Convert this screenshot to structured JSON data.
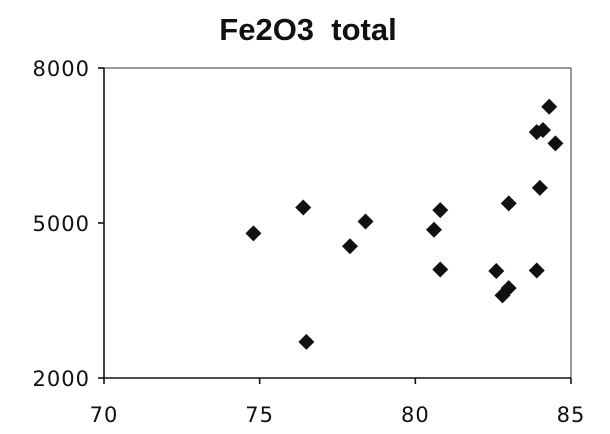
{
  "chart_data": {
    "type": "scatter",
    "title": "Fe2O3  total",
    "xlabel": "",
    "ylabel": "",
    "xlim": [
      70,
      85
    ],
    "ylim": [
      2000,
      8000
    ],
    "x_ticks": [
      70,
      75,
      80,
      85
    ],
    "y_ticks": [
      2000,
      5000,
      8000
    ],
    "x_tick_labels": [
      "70",
      "75",
      "80",
      "85"
    ],
    "y_tick_labels": [
      "2000",
      "5000",
      "8000"
    ],
    "grid": false,
    "legend": "none",
    "marker": "diamond",
    "marker_color": "#111111",
    "series": [
      {
        "points": [
          {
            "x": 74.8,
            "y": 4800
          },
          {
            "x": 76.4,
            "y": 5300
          },
          {
            "x": 76.5,
            "y": 2700
          },
          {
            "x": 77.9,
            "y": 4550
          },
          {
            "x": 78.4,
            "y": 5030
          },
          {
            "x": 80.6,
            "y": 4870
          },
          {
            "x": 80.8,
            "y": 5250
          },
          {
            "x": 80.8,
            "y": 4100
          },
          {
            "x": 82.6,
            "y": 4070
          },
          {
            "x": 82.8,
            "y": 3600
          },
          {
            "x": 83.0,
            "y": 3740
          },
          {
            "x": 83.0,
            "y": 5380
          },
          {
            "x": 83.9,
            "y": 4080
          },
          {
            "x": 83.9,
            "y": 6760
          },
          {
            "x": 84.0,
            "y": 5680
          },
          {
            "x": 84.1,
            "y": 6800
          },
          {
            "x": 84.3,
            "y": 7250
          },
          {
            "x": 84.5,
            "y": 6540
          }
        ]
      }
    ]
  }
}
